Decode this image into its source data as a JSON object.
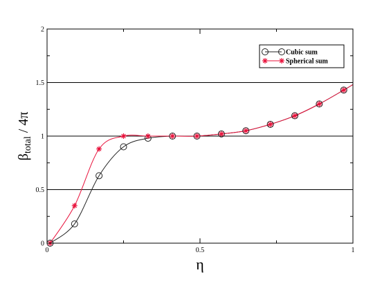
{
  "chart_data": {
    "type": "line",
    "xlabel": "η",
    "ylabel_main": "β",
    "ylabel_sub": "total",
    "ylabel_suffix": " / 4π",
    "xlim": [
      0,
      1
    ],
    "ylim": [
      0,
      2
    ],
    "x_ticks": [
      0,
      0.5,
      1
    ],
    "x_tick_labels": [
      "0",
      "0.5",
      "1"
    ],
    "y_ticks": [
      0,
      0.5,
      1,
      1.5,
      2
    ],
    "y_tick_labels": [
      "0",
      "0.5",
      "1",
      "1.5",
      "2"
    ],
    "grid": "horizontal",
    "legend_position": "top-right",
    "series": [
      {
        "name": "Cubic sum",
        "color": "#222222",
        "marker": "circle",
        "x": [
          0.01,
          0.09,
          0.17,
          0.25,
          0.33,
          0.41,
          0.49,
          0.57,
          0.65,
          0.73,
          0.81,
          0.89,
          0.97
        ],
        "y": [
          0.0,
          0.18,
          0.63,
          0.9,
          0.98,
          1.0,
          1.0,
          1.02,
          1.05,
          1.11,
          1.19,
          1.3,
          1.43
        ]
      },
      {
        "name": "Spherical sum",
        "color": "#e8103a",
        "marker": "star",
        "x": [
          0.01,
          0.09,
          0.17,
          0.25,
          0.33,
          0.41,
          0.49,
          0.57,
          0.65,
          0.73,
          0.81,
          0.89,
          0.97
        ],
        "y": [
          0.0,
          0.35,
          0.88,
          1.0,
          1.0,
          1.0,
          1.0,
          1.02,
          1.05,
          1.11,
          1.19,
          1.3,
          1.43
        ]
      }
    ]
  }
}
